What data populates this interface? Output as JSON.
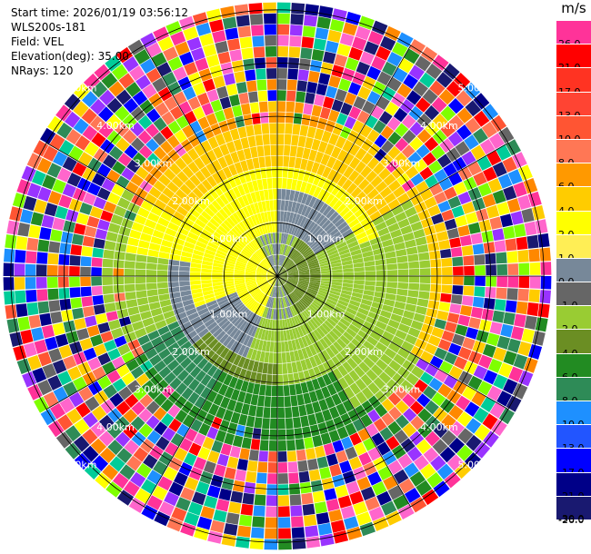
{
  "header": {
    "start_time": "Start time: 2026/01/19 03:56:12",
    "instrument": "WLS200s-181",
    "field": "Field: VEL",
    "elevation": "Elevation(deg): 35.00",
    "nrays": "NRays: 120"
  },
  "colorbar": {
    "unit": "m/s",
    "labels": [
      "26.0",
      "21.0",
      "17.0",
      "13.0",
      "10.0",
      "8.0",
      "6.0",
      "4.0",
      "2.0",
      "1.0",
      "0.0",
      "-1.0",
      "-2.0",
      "-4.0",
      "-6.0",
      "-8.0",
      "-10.0",
      "-13.0",
      "-17.0",
      "-21.0",
      "-26.0",
      "-30.0"
    ],
    "colors": [
      "#ff3399",
      "#ff0000",
      "#ff3322",
      "#ff4433",
      "#ff5533",
      "#ff7755",
      "#ff9900",
      "#ffcc00",
      "#ffff00",
      "#ffee55",
      "#778899",
      "#666666",
      "#99cc33",
      "#6b8e23",
      "#228b22",
      "#2e8b57",
      "#1e90ff",
      "#2255ff",
      "#0000ff",
      "#000088",
      "#191970"
    ]
  },
  "range_rings": {
    "labels": [
      "1.00km",
      "2.00km",
      "3.00km",
      "4.00km",
      "5.00km"
    ]
  },
  "plot": {
    "nrays": 120,
    "ngates": 25
  }
}
